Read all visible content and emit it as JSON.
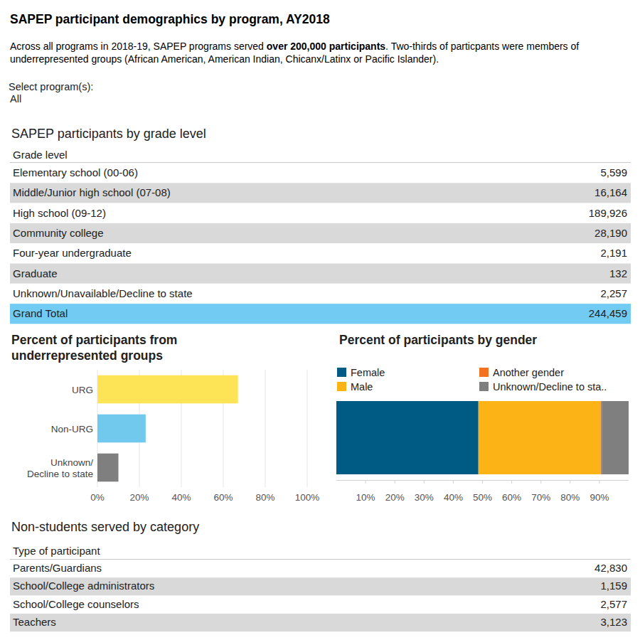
{
  "header": {
    "title": "SAPEP participant demographics by program, AY2018",
    "subtitle": {
      "lead": "Across all programs in 2018-19, SAPEP programs served ",
      "emphasis": "over 200,000 participants",
      "rest": ". Two-thirds of particpants were members of underrepresented groups (African American, American Indian, Chicanx/Latinx or Pacific Islander)."
    }
  },
  "filter": {
    "label": "Select program(s):",
    "value": "All"
  },
  "grade_table": {
    "title": "SAPEP participants by grade level",
    "header": "Grade level",
    "rows": [
      [
        "Elementary school (00-06)",
        "5,599"
      ],
      [
        "Middle/Junior high school (07-08)",
        "16,164"
      ],
      [
        "High school (09-12)",
        "189,926"
      ],
      [
        "Community college",
        "28,190"
      ],
      [
        "Four-year undergraduate",
        "2,191"
      ],
      [
        "Graduate",
        "132"
      ],
      [
        "Unknown/Unavailable/Decline to state",
        "2,257"
      ]
    ],
    "total": [
      "Grand Total",
      "244,459"
    ]
  },
  "chart_data": [
    {
      "type": "bar",
      "title": "Percent of participants from underrepresented groups",
      "orientation": "horizontal",
      "categories": [
        "URG",
        "Non-URG",
        "Unknown/\nDecline to state"
      ],
      "values": [
        67,
        23,
        10
      ],
      "colors": [
        "#fde456",
        "#72c9ee",
        "#7f7f7f"
      ],
      "xlim": [
        0,
        100
      ],
      "xticks": [
        {
          "value": 0,
          "label": "0%"
        },
        {
          "value": 20,
          "label": "20%"
        },
        {
          "value": 40,
          "label": "40%"
        },
        {
          "value": 60,
          "label": "60%"
        },
        {
          "value": 80,
          "label": "80%"
        },
        {
          "value": 100,
          "label": "100%"
        }
      ],
      "grid": true
    },
    {
      "type": "bar",
      "title": "Percent of participants by gender",
      "orientation": "horizontal",
      "stacked": true,
      "legend": "top",
      "categories": [
        null
      ],
      "series": [
        {
          "name": "Female",
          "color": "#005b84",
          "values": [
            48.6
          ]
        },
        {
          "name": "Male",
          "color": "#fbb316",
          "values": [
            41.8
          ]
        },
        {
          "name": "Another gender",
          "color": "#f4721f",
          "values": [
            0.4
          ]
        },
        {
          "name": "Unknown/Decline to sta..",
          "color": "#7f7f7f",
          "values": [
            9.2
          ]
        }
      ],
      "xlim": [
        0,
        100
      ],
      "xticks": [
        {
          "value": 10,
          "label": "10%"
        },
        {
          "value": 20,
          "label": "20%"
        },
        {
          "value": 30,
          "label": "30%"
        },
        {
          "value": 40,
          "label": "40%"
        },
        {
          "value": 50,
          "label": "50%"
        },
        {
          "value": 60,
          "label": "60%"
        },
        {
          "value": 70,
          "label": "70%"
        },
        {
          "value": 80,
          "label": "80%"
        },
        {
          "value": 90,
          "label": "90%"
        }
      ],
      "grid": false
    }
  ],
  "non_student_table": {
    "title": "Non-students served by category",
    "header": "Type of participant",
    "rows": [
      [
        "Parents/Guardians",
        "42,830"
      ],
      [
        "School/College administrators",
        "1,159"
      ],
      [
        "School/College counselors",
        "2,577"
      ],
      [
        "Teachers",
        "3,123"
      ]
    ]
  }
}
